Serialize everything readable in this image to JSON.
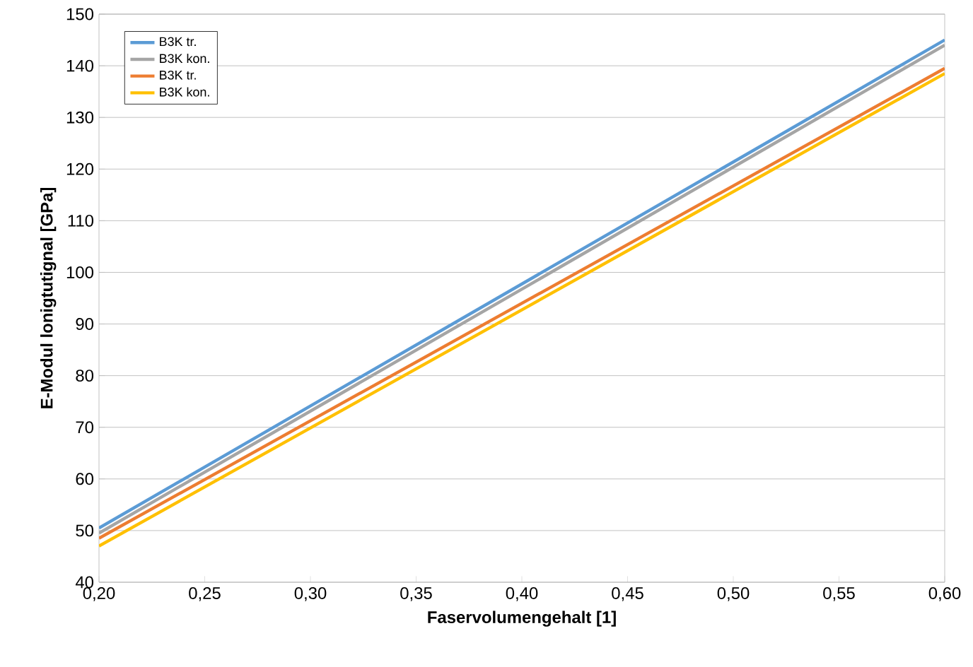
{
  "chart_data": {
    "type": "line",
    "xlabel": "Faservolumengehalt [1]",
    "ylabel": "E-Modul lonigtutignal  [GPa]",
    "xlim": [
      0.2,
      0.6
    ],
    "ylim": [
      40,
      150
    ],
    "xticks": [
      {
        "value": 0.2,
        "label": "0,20"
      },
      {
        "value": 0.25,
        "label": "0,25"
      },
      {
        "value": 0.3,
        "label": "0,30"
      },
      {
        "value": 0.35,
        "label": "0,35"
      },
      {
        "value": 0.4,
        "label": "0,40"
      },
      {
        "value": 0.45,
        "label": "0,45"
      },
      {
        "value": 0.5,
        "label": "0,50"
      },
      {
        "value": 0.55,
        "label": "0,55"
      },
      {
        "value": 0.6,
        "label": "0,60"
      }
    ],
    "yticks": [
      40,
      50,
      60,
      70,
      80,
      90,
      100,
      110,
      120,
      130,
      140,
      150
    ],
    "grid": "y",
    "legend": "top left",
    "marker": "none",
    "line_style": "solid",
    "x": [
      0.2,
      0.6
    ],
    "series": [
      {
        "name": "B3K tr.",
        "color": "#5b9bd5",
        "values": [
          50.5,
          145
        ]
      },
      {
        "name": "B3K kon.",
        "color": "#a5a5a5",
        "values": [
          49.5,
          144
        ]
      },
      {
        "name": "B3K tr.",
        "color": "#ed7d31",
        "values": [
          48.5,
          139.5
        ]
      },
      {
        "name": "B3K kon.",
        "color": "#ffc000",
        "values": [
          47,
          138.5
        ]
      }
    ]
  }
}
